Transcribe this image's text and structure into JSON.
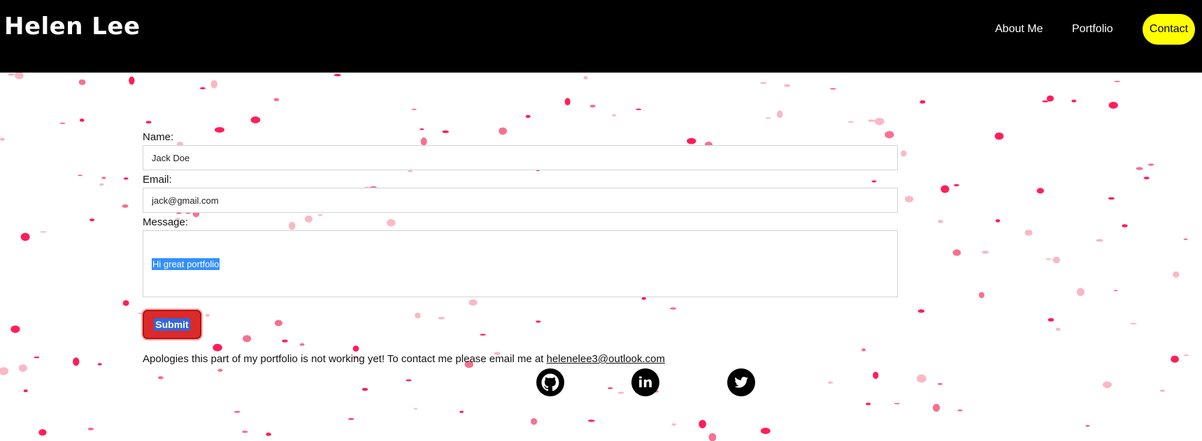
{
  "header": {
    "brand": "Helen Lee",
    "nav": [
      {
        "label": "About Me"
      },
      {
        "label": "Portfolio"
      },
      {
        "label": "Contact"
      }
    ],
    "contact_bg": "#ffff00"
  },
  "form": {
    "name_label": "Name:",
    "name_value": "Jack Doe",
    "email_label": "Email:",
    "email_value": "jack@gmail.com",
    "message_label": "Message:",
    "message_value": "Hi great portfolio",
    "submit_label": "Submit"
  },
  "notice": {
    "text": "Apologies this part of my portfolio is not working yet! To contact me please email me at ",
    "email": "helenelee3@outlook.com"
  },
  "socials": [
    {
      "icon": "github-icon"
    },
    {
      "icon": "linkedin-icon"
    },
    {
      "icon": "twitter-icon"
    }
  ],
  "colors": {
    "header_bg": "#000000",
    "confetti_dark": "#ff1e5a",
    "confetti_mid": "#f7708f",
    "confetti_light": "#f9b8c6",
    "submit_bg": "#dc2a2a"
  }
}
